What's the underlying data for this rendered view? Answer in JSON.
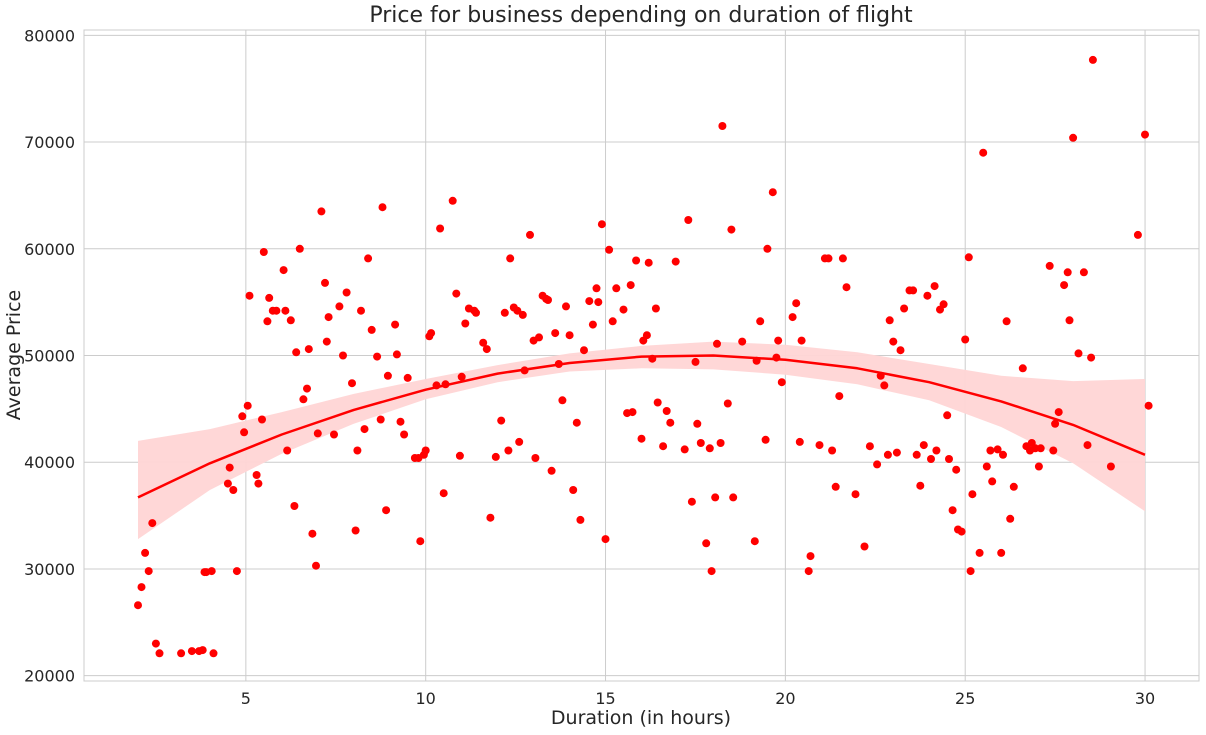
{
  "chart_data": {
    "type": "scatter",
    "title": "Price for business depending on duration of flight",
    "xlabel": "Duration (in hours)",
    "ylabel": "Average Price",
    "xlim": [
      0.5,
      31.5
    ],
    "ylim": [
      19500,
      80500
    ],
    "xticks": [
      5,
      10,
      15,
      20,
      25,
      30
    ],
    "yticks": [
      20000,
      30000,
      40000,
      50000,
      60000,
      70000,
      80000
    ],
    "grid": true,
    "point_color": "#ff0000",
    "fit_color": "#ff0000",
    "band_color": "#ffd5d5",
    "points": [
      [
        2.0,
        26600
      ],
      [
        2.1,
        28300
      ],
      [
        2.2,
        31500
      ],
      [
        2.3,
        29800
      ],
      [
        2.4,
        34300
      ],
      [
        2.5,
        23000
      ],
      [
        2.6,
        22100
      ],
      [
        3.2,
        22100
      ],
      [
        3.5,
        22300
      ],
      [
        3.7,
        22300
      ],
      [
        3.8,
        22400
      ],
      [
        3.85,
        29700
      ],
      [
        3.9,
        29700
      ],
      [
        4.05,
        29800
      ],
      [
        4.1,
        22100
      ],
      [
        4.5,
        38000
      ],
      [
        4.55,
        39500
      ],
      [
        4.65,
        37400
      ],
      [
        4.75,
        29800
      ],
      [
        4.9,
        44300
      ],
      [
        4.95,
        42800
      ],
      [
        5.05,
        45300
      ],
      [
        5.1,
        55600
      ],
      [
        5.3,
        38800
      ],
      [
        5.35,
        38000
      ],
      [
        5.45,
        44000
      ],
      [
        5.5,
        59700
      ],
      [
        5.6,
        53200
      ],
      [
        5.65,
        55400
      ],
      [
        5.75,
        54200
      ],
      [
        5.85,
        54200
      ],
      [
        6.05,
        58000
      ],
      [
        6.1,
        54200
      ],
      [
        6.15,
        41100
      ],
      [
        6.25,
        53300
      ],
      [
        6.35,
        35900
      ],
      [
        6.4,
        50300
      ],
      [
        6.5,
        60000
      ],
      [
        6.6,
        45900
      ],
      [
        6.7,
        46900
      ],
      [
        6.75,
        50600
      ],
      [
        6.85,
        33300
      ],
      [
        6.95,
        30300
      ],
      [
        7.0,
        42700
      ],
      [
        7.1,
        63500
      ],
      [
        7.2,
        56800
      ],
      [
        7.25,
        51300
      ],
      [
        7.3,
        53600
      ],
      [
        7.45,
        42600
      ],
      [
        7.6,
        54600
      ],
      [
        7.7,
        50000
      ],
      [
        7.8,
        55900
      ],
      [
        7.95,
        47400
      ],
      [
        8.05,
        33600
      ],
      [
        8.1,
        41100
      ],
      [
        8.2,
        54200
      ],
      [
        8.3,
        43100
      ],
      [
        8.4,
        59100
      ],
      [
        8.5,
        52400
      ],
      [
        8.65,
        49900
      ],
      [
        8.75,
        44000
      ],
      [
        8.8,
        63900
      ],
      [
        8.9,
        35500
      ],
      [
        8.95,
        48100
      ],
      [
        9.15,
        52900
      ],
      [
        9.2,
        50100
      ],
      [
        9.3,
        43800
      ],
      [
        9.4,
        42600
      ],
      [
        9.5,
        47900
      ],
      [
        9.7,
        40400
      ],
      [
        9.8,
        40400
      ],
      [
        9.85,
        32600
      ],
      [
        9.95,
        40700
      ],
      [
        10.0,
        41100
      ],
      [
        10.1,
        51800
      ],
      [
        10.15,
        52100
      ],
      [
        10.3,
        47200
      ],
      [
        10.4,
        61900
      ],
      [
        10.5,
        37100
      ],
      [
        10.55,
        47300
      ],
      [
        10.75,
        64500
      ],
      [
        10.85,
        55800
      ],
      [
        10.95,
        40600
      ],
      [
        11.0,
        48000
      ],
      [
        11.1,
        53000
      ],
      [
        11.2,
        54400
      ],
      [
        11.35,
        54200
      ],
      [
        11.4,
        54000
      ],
      [
        11.6,
        51200
      ],
      [
        11.7,
        50600
      ],
      [
        11.8,
        34800
      ],
      [
        11.95,
        40500
      ],
      [
        12.1,
        43900
      ],
      [
        12.2,
        54000
      ],
      [
        12.3,
        41100
      ],
      [
        12.35,
        59100
      ],
      [
        12.45,
        54500
      ],
      [
        12.55,
        54200
      ],
      [
        12.6,
        41900
      ],
      [
        12.7,
        53800
      ],
      [
        12.75,
        48600
      ],
      [
        12.9,
        61300
      ],
      [
        13.0,
        51400
      ],
      [
        13.05,
        40400
      ],
      [
        13.15,
        51700
      ],
      [
        13.25,
        55600
      ],
      [
        13.35,
        55300
      ],
      [
        13.4,
        55200
      ],
      [
        13.5,
        39200
      ],
      [
        13.6,
        52100
      ],
      [
        13.7,
        49200
      ],
      [
        13.8,
        45800
      ],
      [
        13.9,
        54600
      ],
      [
        14.0,
        51900
      ],
      [
        14.1,
        37400
      ],
      [
        14.2,
        43700
      ],
      [
        14.3,
        34600
      ],
      [
        14.4,
        50500
      ],
      [
        14.55,
        55100
      ],
      [
        14.65,
        52900
      ],
      [
        14.75,
        56300
      ],
      [
        14.8,
        55000
      ],
      [
        14.9,
        62300
      ],
      [
        15.0,
        32800
      ],
      [
        15.1,
        59900
      ],
      [
        15.2,
        53200
      ],
      [
        15.3,
        56300
      ],
      [
        15.5,
        54300
      ],
      [
        15.6,
        44600
      ],
      [
        15.7,
        56600
      ],
      [
        15.75,
        44700
      ],
      [
        15.85,
        58900
      ],
      [
        16.0,
        42200
      ],
      [
        16.05,
        51400
      ],
      [
        16.15,
        51900
      ],
      [
        16.2,
        58700
      ],
      [
        16.3,
        49700
      ],
      [
        16.4,
        54400
      ],
      [
        16.45,
        45600
      ],
      [
        16.6,
        41500
      ],
      [
        16.7,
        44800
      ],
      [
        16.8,
        43700
      ],
      [
        16.95,
        58800
      ],
      [
        17.2,
        41200
      ],
      [
        17.3,
        62700
      ],
      [
        17.4,
        36300
      ],
      [
        17.5,
        49400
      ],
      [
        17.55,
        43600
      ],
      [
        17.65,
        41800
      ],
      [
        17.8,
        32400
      ],
      [
        17.9,
        41300
      ],
      [
        17.95,
        29800
      ],
      [
        18.05,
        36700
      ],
      [
        18.1,
        51100
      ],
      [
        18.2,
        41800
      ],
      [
        18.25,
        71500
      ],
      [
        18.4,
        45500
      ],
      [
        18.5,
        61800
      ],
      [
        18.55,
        36700
      ],
      [
        18.8,
        51300
      ],
      [
        19.15,
        32600
      ],
      [
        19.2,
        49500
      ],
      [
        19.3,
        53200
      ],
      [
        19.45,
        42100
      ],
      [
        19.5,
        60000
      ],
      [
        19.65,
        65300
      ],
      [
        19.75,
        49800
      ],
      [
        19.8,
        51400
      ],
      [
        19.9,
        47500
      ],
      [
        20.2,
        53600
      ],
      [
        20.3,
        54900
      ],
      [
        20.4,
        41900
      ],
      [
        20.45,
        51400
      ],
      [
        20.65,
        29800
      ],
      [
        20.7,
        31200
      ],
      [
        20.95,
        41600
      ],
      [
        21.1,
        59100
      ],
      [
        21.2,
        59100
      ],
      [
        21.3,
        41100
      ],
      [
        21.4,
        37700
      ],
      [
        21.5,
        46200
      ],
      [
        21.6,
        59100
      ],
      [
        21.7,
        56400
      ],
      [
        21.95,
        37000
      ],
      [
        22.2,
        32100
      ],
      [
        22.35,
        41500
      ],
      [
        22.55,
        39800
      ],
      [
        22.65,
        48100
      ],
      [
        22.75,
        47200
      ],
      [
        22.85,
        40700
      ],
      [
        22.9,
        53300
      ],
      [
        23.0,
        51300
      ],
      [
        23.1,
        40900
      ],
      [
        23.2,
        50500
      ],
      [
        23.3,
        54400
      ],
      [
        23.45,
        56100
      ],
      [
        23.55,
        56100
      ],
      [
        23.65,
        40700
      ],
      [
        23.75,
        37800
      ],
      [
        23.85,
        41600
      ],
      [
        23.95,
        55600
      ],
      [
        24.05,
        40300
      ],
      [
        24.15,
        56500
      ],
      [
        24.2,
        41100
      ],
      [
        24.3,
        54300
      ],
      [
        24.4,
        54800
      ],
      [
        24.5,
        44400
      ],
      [
        24.55,
        40300
      ],
      [
        24.65,
        35500
      ],
      [
        24.75,
        39300
      ],
      [
        24.8,
        33700
      ],
      [
        24.9,
        33500
      ],
      [
        25.0,
        51500
      ],
      [
        25.1,
        59200
      ],
      [
        25.15,
        29800
      ],
      [
        25.2,
        37000
      ],
      [
        25.4,
        31500
      ],
      [
        25.5,
        69000
      ],
      [
        25.6,
        39600
      ],
      [
        25.7,
        41100
      ],
      [
        25.75,
        38200
      ],
      [
        25.9,
        41200
      ],
      [
        26.0,
        31500
      ],
      [
        26.05,
        40700
      ],
      [
        26.15,
        53200
      ],
      [
        26.25,
        34700
      ],
      [
        26.35,
        37700
      ],
      [
        26.6,
        48800
      ],
      [
        26.7,
        41500
      ],
      [
        26.8,
        41100
      ],
      [
        26.85,
        41800
      ],
      [
        26.95,
        41300
      ],
      [
        27.05,
        39600
      ],
      [
        27.1,
        41300
      ],
      [
        27.35,
        58400
      ],
      [
        27.45,
        41100
      ],
      [
        27.5,
        43600
      ],
      [
        27.6,
        44700
      ],
      [
        27.75,
        56600
      ],
      [
        27.85,
        57800
      ],
      [
        27.9,
        53300
      ],
      [
        28.0,
        70400
      ],
      [
        28.15,
        50200
      ],
      [
        28.3,
        57800
      ],
      [
        28.4,
        41600
      ],
      [
        28.5,
        49800
      ],
      [
        28.55,
        77700
      ],
      [
        29.05,
        39600
      ],
      [
        29.8,
        61300
      ],
      [
        30.0,
        70700
      ],
      [
        30.1,
        45300
      ]
    ],
    "fit": {
      "label": "polynomial regression (order 2)",
      "x": [
        2.0,
        4.0,
        6.0,
        8.0,
        10.0,
        12.0,
        14.0,
        16.0,
        18.0,
        20.0,
        22.0,
        24.0,
        26.0,
        28.0,
        30.0
      ],
      "y": [
        36700,
        39900,
        42600,
        44900,
        46800,
        48300,
        49300,
        49900,
        50000,
        49600,
        48800,
        47500,
        45700,
        43500,
        40700
      ],
      "lower": [
        32800,
        37400,
        40800,
        43600,
        45900,
        47500,
        48500,
        48800,
        48700,
        48200,
        47300,
        45800,
        43300,
        39900,
        35400
      ],
      "upper": [
        42000,
        43100,
        44700,
        46400,
        47800,
        49100,
        50200,
        50900,
        51300,
        51000,
        50300,
        49200,
        48100,
        47600,
        47800
      ]
    }
  }
}
